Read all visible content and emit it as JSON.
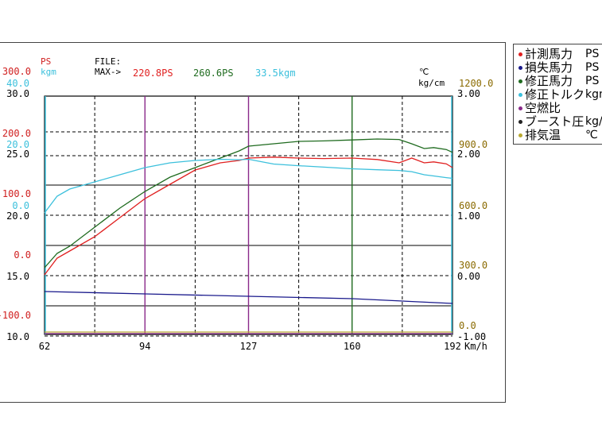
{
  "header": {
    "ps_unit": "PS",
    "kgm_unit": "kgm",
    "file_label": "FILE:",
    "max_label": "MAX->",
    "max_ps": "220.8PS",
    "max_ps_corr": "260.6PS",
    "max_torque": "33.5kgm",
    "deg_c_unit": "℃",
    "kgcm_unit": "kg/cm"
  },
  "axes": {
    "x_unit": "Km/h",
    "x_ticks": [
      "62",
      "94",
      "127",
      "160",
      "192"
    ],
    "left_ps_ticks": [
      "300.0",
      "200.0",
      "100.0",
      "0.0",
      "-100.0"
    ],
    "left_kgm_ticks": [
      "40.0",
      "20.0",
      "0.0"
    ],
    "left_afr_ticks": [
      "30.0",
      "25.0",
      "20.0",
      "15.0",
      "10.0"
    ],
    "right_temp_ticks": [
      "1200.0",
      "900.0",
      "600.0",
      "300.0",
      "0.0"
    ],
    "right_boost_ticks": [
      "3.00",
      "2.00",
      "1.00",
      "0.00",
      "-1.00"
    ]
  },
  "legend": [
    {
      "label": "計測馬力",
      "unit": "PS",
      "color": "#e02020"
    },
    {
      "label": "損失馬力",
      "unit": "PS",
      "color": "#1a1a8c"
    },
    {
      "label": "修正馬力",
      "unit": "PS",
      "color": "#1f6b1f"
    },
    {
      "label": "修正トルク",
      "unit": "kgm",
      "color": "#3cc0dc"
    },
    {
      "label": "空燃比",
      "unit": "",
      "color": "#8a2a8a"
    },
    {
      "label": "ブースト圧",
      "unit": "kg/cm",
      "color": "#222222"
    },
    {
      "label": "排気温",
      "unit": "℃",
      "color": "#b8a830"
    }
  ],
  "colors": {
    "measured": "#e02020",
    "loss": "#1a1a8c",
    "corrected": "#1f6b1f",
    "torque": "#3cc0dc",
    "afr": "#8a2a8a",
    "boost": "#222222",
    "exhaust": "#b8a830",
    "ps_axis": "#d02020",
    "kgm_axis": "#3cc0dc",
    "temp_axis": "#8a6a00"
  },
  "chart_data": {
    "type": "line",
    "xlabel": "Km/h",
    "xlim": [
      62,
      192
    ],
    "ylim_ps": [
      -150,
      350
    ],
    "series": [
      {
        "name": "計測馬力",
        "unit": "PS",
        "color": "#e02020",
        "x": [
          62,
          66,
          70,
          78,
          86,
          94,
          102,
          110,
          118,
          124,
          127,
          135,
          143,
          151,
          160,
          168,
          175,
          179,
          183,
          186,
          190,
          192
        ],
        "values": [
          -25,
          10,
          25,
          55,
          95,
          135,
          165,
          195,
          210,
          215,
          220,
          222,
          220,
          219,
          220,
          217,
          210,
          220,
          210,
          212,
          208,
          200
        ]
      },
      {
        "name": "修正馬力",
        "unit": "PS",
        "color": "#1f6b1f",
        "x": [
          62,
          66,
          70,
          78,
          86,
          94,
          102,
          110,
          118,
          124,
          127,
          135,
          143,
          151,
          160,
          168,
          175,
          179,
          183,
          186,
          190,
          192
        ],
        "values": [
          -10,
          20,
          35,
          75,
          115,
          150,
          180,
          200,
          220,
          235,
          245,
          250,
          255,
          256,
          258,
          260,
          259,
          250,
          240,
          242,
          238,
          232
        ]
      },
      {
        "name": "損失馬力",
        "unit": "PS",
        "color": "#1a1a8c",
        "x": [
          62,
          94,
          127,
          160,
          192
        ],
        "values": [
          -60,
          -65,
          -70,
          -75,
          -85
        ]
      },
      {
        "name": "修正トルク",
        "unit": "kgm",
        "color": "#3cc0dc",
        "x": [
          62,
          66,
          70,
          78,
          86,
          94,
          102,
          110,
          118,
          124,
          127,
          135,
          143,
          151,
          160,
          168,
          175,
          179,
          183,
          186,
          190,
          192
        ],
        "values": [
          11,
          18,
          21,
          24,
          27,
          30,
          32,
          33,
          33.5,
          33.3,
          33.5,
          31.5,
          30.8,
          30.2,
          29.5,
          29.1,
          28.8,
          28.3,
          27.0,
          26.5,
          25.8,
          25.5
        ]
      },
      {
        "name": "空燃比",
        "unit": "",
        "color": "#8a2a8a",
        "x": [
          62,
          192
        ],
        "values": [
          10.0,
          10.0
        ]
      },
      {
        "name": "排気温",
        "unit": "℃",
        "color": "#b8a830",
        "x": [
          62,
          192
        ],
        "values": [
          10,
          10
        ]
      }
    ]
  }
}
